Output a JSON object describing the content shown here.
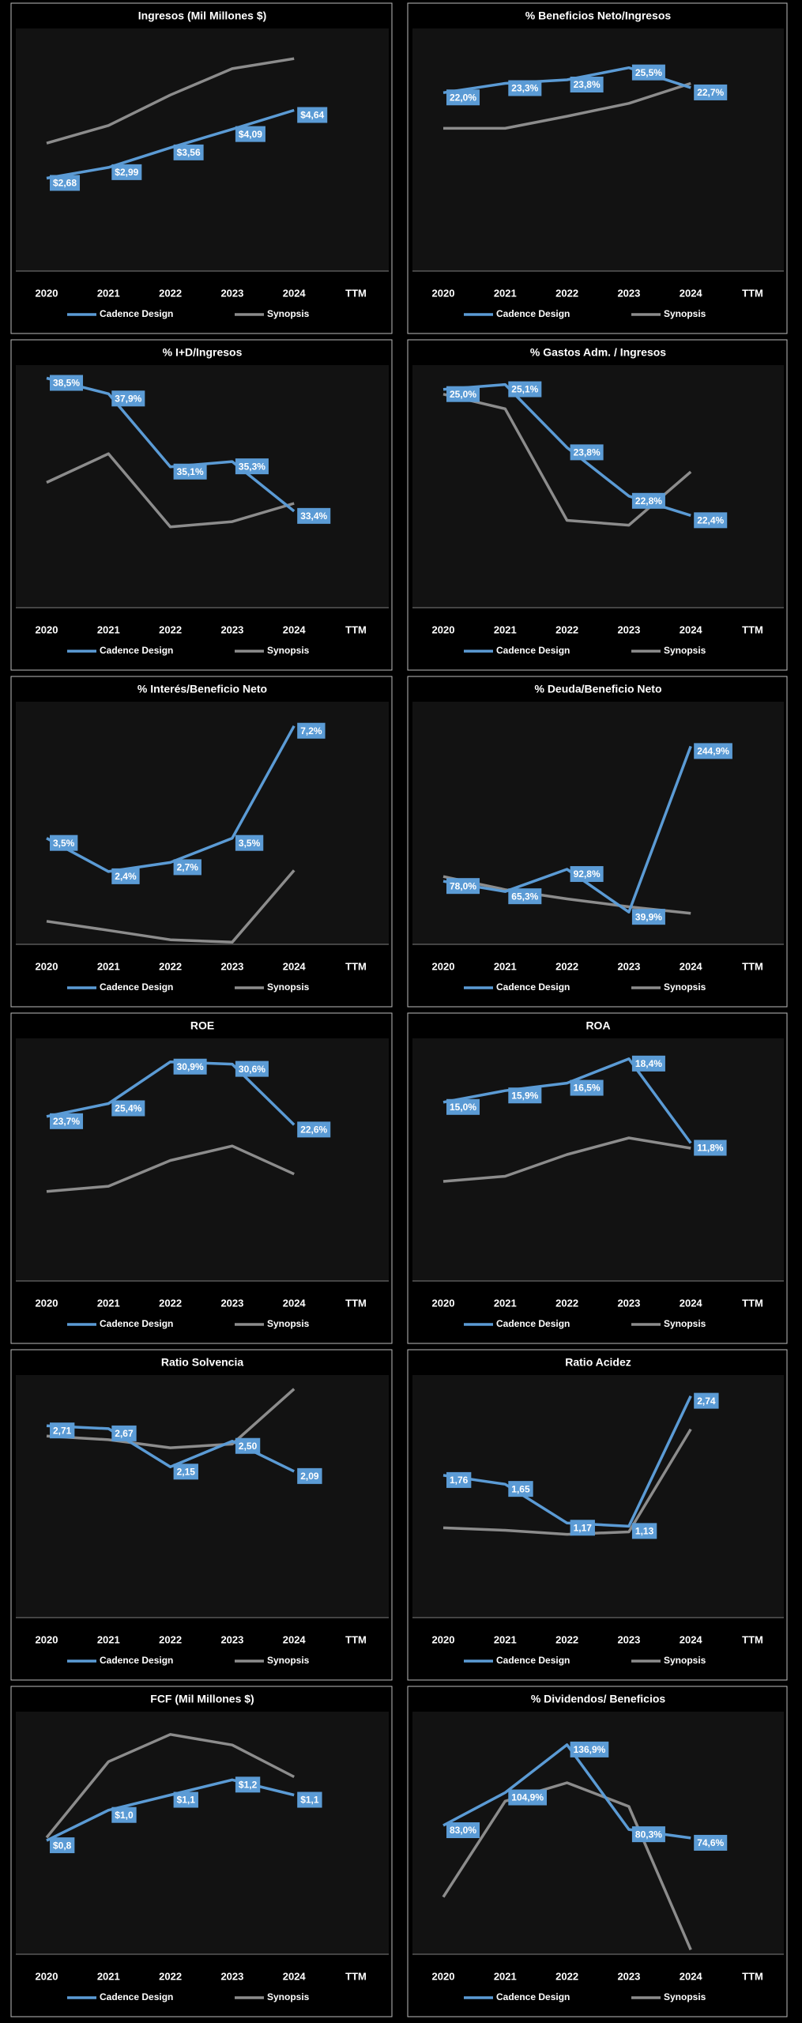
{
  "chart_data": [
    {
      "type": "line",
      "title": "Ingresos (Mil Millones $)",
      "categories": [
        "2020",
        "2021",
        "2022",
        "2023",
        "2024",
        "TTM"
      ],
      "ylim": [
        0,
        7
      ],
      "series": [
        {
          "name": "Cadence Design",
          "color": "#5b9bd5",
          "values": [
            2.68,
            2.99,
            3.56,
            4.09,
            4.64,
            null
          ],
          "value_labels": [
            "$2,68",
            "$2,99",
            "$3,56",
            "$4,09",
            "$4,64",
            null
          ]
        },
        {
          "name": "Synopsis",
          "color": "#8c8c8c",
          "values": [
            3.69,
            4.2,
            5.08,
            5.84,
            6.13,
            null
          ]
        }
      ]
    },
    {
      "type": "line",
      "title": "% Beneficios Neto/Ingresos",
      "categories": [
        "2020",
        "2021",
        "2022",
        "2023",
        "2024",
        "TTM"
      ],
      "ylim": [
        -3,
        31
      ],
      "series": [
        {
          "name": "Cadence Design",
          "color": "#5b9bd5",
          "values": [
            22.0,
            23.3,
            23.8,
            25.5,
            22.7,
            null
          ],
          "value_labels": [
            "22,0%",
            "23,3%",
            "23,8%",
            "25,5%",
            "22,7%",
            null
          ]
        },
        {
          "name": "Synopsis",
          "color": "#8c8c8c",
          "values": [
            17.0,
            17.0,
            18.7,
            20.5,
            23.3,
            null
          ]
        }
      ]
    },
    {
      "type": "line",
      "title": "% I+D/Ingresos",
      "categories": [
        "2020",
        "2021",
        "2022",
        "2023",
        "2024",
        "TTM"
      ],
      "ylim": [
        29.7,
        39
      ],
      "series": [
        {
          "name": "Cadence Design",
          "color": "#5b9bd5",
          "values": [
            38.5,
            37.9,
            35.1,
            35.3,
            33.4,
            null
          ],
          "value_labels": [
            "38,5%",
            "37,9%",
            "35,1%",
            "35,3%",
            "33,4%",
            null
          ]
        },
        {
          "name": "Synopsis",
          "color": "#8c8c8c",
          "values": [
            34.5,
            35.6,
            32.8,
            33.0,
            33.7,
            null
          ]
        }
      ]
    },
    {
      "type": "line",
      "title": "% Gastos Adm. / Ingresos",
      "categories": [
        "2020",
        "2021",
        "2022",
        "2023",
        "2024",
        "TTM"
      ],
      "ylim": [
        20.5,
        25.5
      ],
      "series": [
        {
          "name": "Cadence Design",
          "color": "#5b9bd5",
          "values": [
            25.0,
            25.1,
            23.8,
            22.8,
            22.4,
            null
          ],
          "value_labels": [
            "25,0%",
            "25,1%",
            "23,8%",
            "22,8%",
            "22,4%",
            null
          ]
        },
        {
          "name": "Synopsis",
          "color": "#8c8c8c",
          "values": [
            24.9,
            24.6,
            22.3,
            22.2,
            23.3,
            null
          ]
        }
      ]
    },
    {
      "type": "line",
      "title": "% Interés/Beneficio Neto",
      "categories": [
        "2020",
        "2021",
        "2022",
        "2023",
        "2024",
        "TTM"
      ],
      "ylim": [
        0,
        8
      ],
      "series": [
        {
          "name": "Cadence Design",
          "color": "#5b9bd5",
          "values": [
            3.5,
            2.4,
            2.7,
            3.5,
            7.2,
            null
          ],
          "value_labels": [
            "3,5%",
            "2,4%",
            "2,7%",
            "3,5%",
            "7,2%",
            null
          ]
        },
        {
          "name": "Synopsis",
          "color": "#8c8c8c",
          "values": [
            0.76,
            0.46,
            0.15,
            0.07,
            2.44,
            null
          ]
        }
      ]
    },
    {
      "type": "line",
      "title": "% Deuda/Beneficio Neto",
      "categories": [
        "2020",
        "2021",
        "2022",
        "2023",
        "2024",
        "TTM"
      ],
      "ylim": [
        0,
        300
      ],
      "series": [
        {
          "name": "Cadence Design",
          "color": "#5b9bd5",
          "values": [
            78.0,
            65.3,
            92.8,
            39.9,
            244.9,
            null
          ],
          "value_labels": [
            "78,0%",
            "65,3%",
            "92,8%",
            "39,9%",
            "244,9%",
            null
          ]
        },
        {
          "name": "Synopsis",
          "color": "#8c8c8c",
          "values": [
            83.8,
            67.6,
            56.2,
            46.4,
            38.3,
            null
          ]
        }
      ]
    },
    {
      "type": "line",
      "title": "ROE",
      "categories": [
        "2020",
        "2021",
        "2022",
        "2023",
        "2024",
        "TTM"
      ],
      "ylim": [
        2,
        34
      ],
      "series": [
        {
          "name": "Cadence Design",
          "color": "#5b9bd5",
          "values": [
            23.7,
            25.4,
            30.9,
            30.6,
            22.6,
            null
          ],
          "value_labels": [
            "23,7%",
            "25,4%",
            "30,9%",
            "30,6%",
            "22,6%",
            null
          ]
        },
        {
          "name": "Synopsis",
          "color": "#8c8c8c",
          "values": [
            13.8,
            14.5,
            17.9,
            19.8,
            16.1,
            null
          ]
        }
      ]
    },
    {
      "type": "line",
      "title": "ROA",
      "categories": [
        "2020",
        "2021",
        "2022",
        "2023",
        "2024",
        "TTM"
      ],
      "ylim": [
        1,
        20
      ],
      "series": [
        {
          "name": "Cadence Design",
          "color": "#5b9bd5",
          "values": [
            15.0,
            15.9,
            16.5,
            18.4,
            11.8,
            null
          ],
          "value_labels": [
            "15,0%",
            "15,9%",
            "16,5%",
            "18,4%",
            "11,8%",
            null
          ]
        },
        {
          "name": "Synopsis",
          "color": "#8c8c8c",
          "values": [
            8.8,
            9.2,
            10.9,
            12.2,
            11.4,
            null
          ]
        }
      ]
    },
    {
      "type": "line",
      "title": "Ratio Solvencia",
      "categories": [
        "2020",
        "2021",
        "2022",
        "2023",
        "2024",
        "TTM"
      ],
      "ylim": [
        0.1,
        3.4
      ],
      "series": [
        {
          "name": "Cadence Design",
          "color": "#5b9bd5",
          "values": [
            2.71,
            2.67,
            2.15,
            2.5,
            2.09,
            null
          ],
          "value_labels": [
            "2,71",
            "2,67",
            "2,15",
            "2,50",
            "2,09",
            null
          ]
        },
        {
          "name": "Synopsis",
          "color": "#8c8c8c",
          "values": [
            2.57,
            2.52,
            2.41,
            2.46,
            3.21,
            null
          ]
        }
      ]
    },
    {
      "type": "line",
      "title": "Ratio Acidez",
      "categories": [
        "2020",
        "2021",
        "2022",
        "2023",
        "2024",
        "TTM"
      ],
      "ylim": [
        0,
        3
      ],
      "series": [
        {
          "name": "Cadence Design",
          "color": "#5b9bd5",
          "values": [
            1.76,
            1.65,
            1.17,
            1.13,
            2.74,
            null
          ],
          "value_labels": [
            "1,76",
            "1,65",
            "1,17",
            "1,13",
            "2,74",
            null
          ]
        },
        {
          "name": "Synopsis",
          "color": "#8c8c8c",
          "values": [
            1.11,
            1.08,
            1.03,
            1.06,
            2.33,
            null
          ]
        }
      ]
    },
    {
      "type": "line",
      "title": "FCF (Mil Millones $)",
      "categories": [
        "2020",
        "2021",
        "2022",
        "2023",
        "2024",
        "TTM"
      ],
      "ylim": [
        0.05,
        1.65
      ],
      "series": [
        {
          "name": "Cadence Design",
          "color": "#5b9bd5",
          "values": [
            0.8,
            1.0,
            1.1,
            1.2,
            1.1,
            null
          ],
          "value_labels": [
            "$0,8",
            "$1,0",
            "$1,1",
            "$1,2",
            "$1,1",
            null
          ]
        },
        {
          "name": "Synopsis",
          "color": "#8c8c8c",
          "values": [
            0.82,
            1.32,
            1.5,
            1.43,
            1.22,
            null
          ]
        }
      ]
    },
    {
      "type": "line",
      "title": "% Dividendos/ Beneficios",
      "categories": [
        "2020",
        "2021",
        "2022",
        "2023",
        "2024",
        "TTM"
      ],
      "ylim": [
        -3,
        159
      ],
      "series": [
        {
          "name": "Cadence Design",
          "color": "#5b9bd5",
          "values": [
            83.0,
            104.9,
            136.9,
            80.3,
            74.6,
            null
          ],
          "value_labels": [
            "83,0%",
            "104,9%",
            "136,9%",
            "80,3%",
            "74,6%",
            null
          ]
        },
        {
          "name": "Synopsis",
          "color": "#8c8c8c",
          "values": [
            35.2,
            99.2,
            111.5,
            95.7,
            0,
            null
          ]
        }
      ]
    }
  ]
}
